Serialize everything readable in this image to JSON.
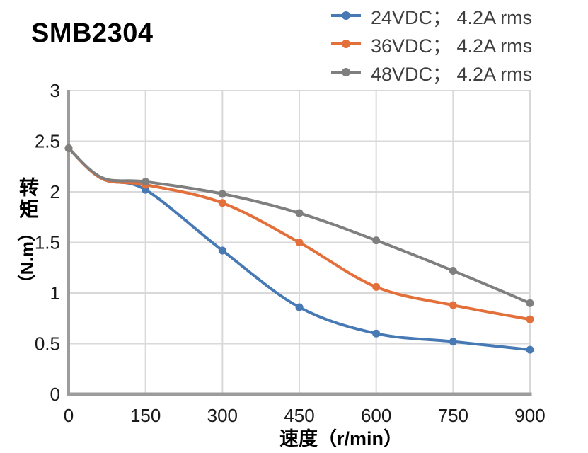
{
  "page": {
    "title": "SMB2304"
  },
  "chart_data": {
    "type": "line",
    "title": "SMB2304",
    "xlabel": "速度（r/min）",
    "ylabel": "转矩（N.m）",
    "ylabel_cjk": "转矩",
    "ylabel_unit": "（N.m）",
    "xlim": [
      0,
      900
    ],
    "ylim": [
      0,
      3
    ],
    "xticks": [
      0,
      150,
      300,
      450,
      600,
      750,
      900
    ],
    "yticks": [
      0,
      0.5,
      1,
      1.5,
      2,
      2.5,
      3
    ],
    "grid": true,
    "legend_position": "top-right",
    "line_style": "smooth",
    "marker": "circle",
    "marker_x": [
      0,
      150,
      300,
      450,
      600,
      750,
      900
    ],
    "series": [
      {
        "name": "24VDC； 4.2A rms",
        "color": "#4779B4",
        "x": [
          0,
          65,
          150,
          300,
          450,
          600,
          750,
          900
        ],
        "y": [
          2.43,
          2.13,
          2.02,
          1.42,
          0.86,
          0.6,
          0.52,
          0.44
        ]
      },
      {
        "name": "36VDC； 4.2A rms",
        "color": "#E3703A",
        "x": [
          0,
          65,
          150,
          300,
          450,
          600,
          750,
          900
        ],
        "y": [
          2.43,
          2.13,
          2.07,
          1.89,
          1.5,
          1.06,
          0.88,
          0.74
        ]
      },
      {
        "name": "48VDC； 4.2A rms",
        "color": "#7F7F7F",
        "x": [
          0,
          65,
          150,
          300,
          450,
          600,
          750,
          900
        ],
        "y": [
          2.43,
          2.14,
          2.1,
          1.98,
          1.79,
          1.52,
          1.22,
          0.9
        ]
      }
    ]
  },
  "colors": {
    "background": "#FFFFFF",
    "axis": "#9C9C9C",
    "grid": "#D9D9D9",
    "tick_text": "#1A1A1A",
    "legend_text": "#3F3F3F",
    "title_text": "#000000"
  }
}
